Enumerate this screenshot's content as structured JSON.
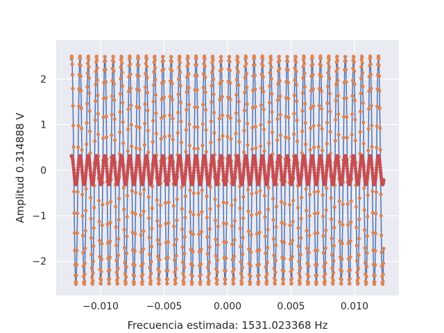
{
  "chart_data": {
    "type": "line",
    "title": "",
    "xlabel": "Frecuencia estimada: 1531.023368 Hz",
    "ylabel": "Amplitud 0.314888 V",
    "xlim": [
      -0.0135,
      0.0135
    ],
    "ylim": [
      -2.75,
      2.85
    ],
    "x_ticks": [
      -0.01,
      -0.005,
      0.0,
      0.005,
      0.01
    ],
    "x_tick_labels": [
      "−0.010",
      "−0.005",
      "0.000",
      "0.005",
      "0.010"
    ],
    "y_ticks": [
      -2,
      -1,
      0,
      1,
      2
    ],
    "y_tick_labels": [
      "−2",
      "−1",
      "0",
      "1",
      "2"
    ],
    "grid": true,
    "legend": "none",
    "x_range": [
      -0.0123,
      0.0123
    ],
    "series": [
      {
        "style": "line",
        "color": "#4c72b0",
        "amplitude": 2.5,
        "frequency_hz": 1531.023368
      },
      {
        "style": "markers",
        "color": "#dd8452",
        "amplitude": 2.5,
        "frequency_hz": 1531.023368
      },
      {
        "style": "line-markers",
        "color": "#c44e52",
        "amplitude": 0.314888,
        "frequency_hz": 1531.023368
      }
    ]
  }
}
